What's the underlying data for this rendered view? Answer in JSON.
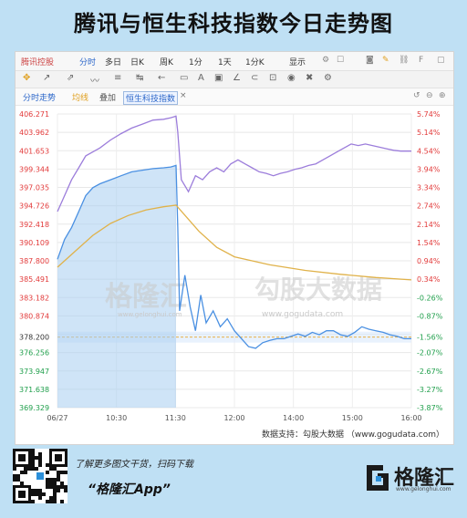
{
  "title": "腾讯与恒生科技指数今日走势图",
  "toolbar": {
    "stock": "腾讯控股",
    "items": [
      "分时",
      "多日",
      "日K",
      "周K",
      "1分",
      "1天",
      "1分K",
      "显示"
    ]
  },
  "tabs": {
    "t1": "分时走势",
    "t2": "均线",
    "t3": "叠加",
    "t4": "恒生科技指数",
    "close": "×"
  },
  "watermark": {
    "left": "格隆汇",
    "left_url": "www.gelonghui.com",
    "right": "勾股大数据",
    "right_url": "www.gogudata.com"
  },
  "credit": "数据支持：勾股大数据 （www.gogudata.com）",
  "footer": {
    "line1": "了解更多图文干货，扫码下载",
    "line2": "“格隆汇App”",
    "logo": "格隆汇",
    "logo_url": "www.gelonghui.com"
  },
  "colors": {
    "price": "#4a90e2",
    "index": "#9c7ddb",
    "avg": "#e0b24a",
    "up": "#e23a3a",
    "down": "#1e9e4a",
    "prev_close": "#e8b04a"
  },
  "chart_data": {
    "type": "line",
    "x_ticks": [
      "06/27",
      "10:30",
      "11:30",
      "12:00",
      "14:00",
      "15:00",
      "16:00"
    ],
    "ylim": [
      369.329,
      406.271
    ],
    "prev_close": 378.2,
    "y_left": [
      "406.271",
      "403.962",
      "401.653",
      "399.344",
      "397.035",
      "394.726",
      "392.418",
      "390.109",
      "387.800",
      "385.491",
      "383.182",
      "380.874",
      "378.200",
      "376.256",
      "373.947",
      "371.638",
      "369.329"
    ],
    "y_right": [
      "5.74%",
      "5.14%",
      "4.54%",
      "3.94%",
      "3.34%",
      "2.74%",
      "2.14%",
      "1.54%",
      "0.94%",
      "0.34%",
      "-0.26%",
      "-0.87%",
      "-1.56%",
      "-2.07%",
      "-2.67%",
      "-3.27%",
      "-3.87%"
    ],
    "series": [
      {
        "name": "腾讯控股",
        "points": [
          [
            0,
            388
          ],
          [
            0.02,
            390.5
          ],
          [
            0.04,
            392
          ],
          [
            0.06,
            394
          ],
          [
            0.08,
            396
          ],
          [
            0.1,
            397
          ],
          [
            0.12,
            397.5
          ],
          [
            0.15,
            398
          ],
          [
            0.18,
            398.5
          ],
          [
            0.21,
            399
          ],
          [
            0.24,
            399.2
          ],
          [
            0.27,
            399.4
          ],
          [
            0.3,
            399.5
          ],
          [
            0.32,
            399.6
          ],
          [
            0.335,
            399.8
          ],
          [
            0.34,
            392
          ],
          [
            0.345,
            381.5
          ],
          [
            0.36,
            386
          ],
          [
            0.375,
            382
          ],
          [
            0.39,
            379
          ],
          [
            0.405,
            383.5
          ],
          [
            0.42,
            380
          ],
          [
            0.44,
            381.5
          ],
          [
            0.46,
            379.5
          ],
          [
            0.48,
            380.5
          ],
          [
            0.5,
            379
          ],
          [
            0.52,
            378
          ],
          [
            0.54,
            377
          ],
          [
            0.56,
            376.8
          ],
          [
            0.58,
            377.5
          ],
          [
            0.6,
            377.8
          ],
          [
            0.62,
            378
          ],
          [
            0.64,
            378
          ],
          [
            0.66,
            378.3
          ],
          [
            0.68,
            378.6
          ],
          [
            0.7,
            378.3
          ],
          [
            0.72,
            378.8
          ],
          [
            0.74,
            378.5
          ],
          [
            0.76,
            379
          ],
          [
            0.78,
            379
          ],
          [
            0.8,
            378.5
          ],
          [
            0.82,
            378.3
          ],
          [
            0.84,
            378.8
          ],
          [
            0.86,
            379.5
          ],
          [
            0.88,
            379.2
          ],
          [
            0.9,
            379
          ],
          [
            0.92,
            378.8
          ],
          [
            0.94,
            378.5
          ],
          [
            0.96,
            378.3
          ],
          [
            0.98,
            378
          ],
          [
            1,
            378
          ]
        ]
      },
      {
        "name": "恒生科技指数",
        "points": [
          [
            0,
            394
          ],
          [
            0.02,
            396
          ],
          [
            0.04,
            398
          ],
          [
            0.06,
            399.5
          ],
          [
            0.08,
            401
          ],
          [
            0.1,
            401.5
          ],
          [
            0.12,
            402
          ],
          [
            0.15,
            403
          ],
          [
            0.18,
            403.8
          ],
          [
            0.21,
            404.5
          ],
          [
            0.24,
            405
          ],
          [
            0.27,
            405.5
          ],
          [
            0.3,
            405.6
          ],
          [
            0.32,
            405.8
          ],
          [
            0.335,
            406
          ],
          [
            0.34,
            404
          ],
          [
            0.35,
            398
          ],
          [
            0.37,
            396.5
          ],
          [
            0.39,
            398.5
          ],
          [
            0.41,
            398
          ],
          [
            0.43,
            399
          ],
          [
            0.45,
            399.5
          ],
          [
            0.47,
            399
          ],
          [
            0.49,
            400
          ],
          [
            0.51,
            400.5
          ],
          [
            0.53,
            400
          ],
          [
            0.55,
            399.5
          ],
          [
            0.57,
            399
          ],
          [
            0.59,
            398.8
          ],
          [
            0.61,
            398.5
          ],
          [
            0.63,
            398.8
          ],
          [
            0.65,
            399
          ],
          [
            0.67,
            399.3
          ],
          [
            0.69,
            399.5
          ],
          [
            0.71,
            399.8
          ],
          [
            0.73,
            400
          ],
          [
            0.75,
            400.5
          ],
          [
            0.77,
            401
          ],
          [
            0.79,
            401.5
          ],
          [
            0.81,
            402
          ],
          [
            0.83,
            402.5
          ],
          [
            0.85,
            402.3
          ],
          [
            0.87,
            402.5
          ],
          [
            0.89,
            402.3
          ],
          [
            0.91,
            402.1
          ],
          [
            0.93,
            401.9
          ],
          [
            0.95,
            401.7
          ],
          [
            0.97,
            401.6
          ],
          [
            1,
            401.6
          ]
        ]
      },
      {
        "name": "均线",
        "points": [
          [
            0,
            387
          ],
          [
            0.05,
            389
          ],
          [
            0.1,
            391
          ],
          [
            0.15,
            392.5
          ],
          [
            0.2,
            393.5
          ],
          [
            0.25,
            394.2
          ],
          [
            0.3,
            394.6
          ],
          [
            0.335,
            394.8
          ],
          [
            0.4,
            391.5
          ],
          [
            0.45,
            389.5
          ],
          [
            0.5,
            388.3
          ],
          [
            0.6,
            387.3
          ],
          [
            0.7,
            386.6
          ],
          [
            0.8,
            386.1
          ],
          [
            0.9,
            385.7
          ],
          [
            1,
            385.4
          ]
        ]
      }
    ]
  }
}
